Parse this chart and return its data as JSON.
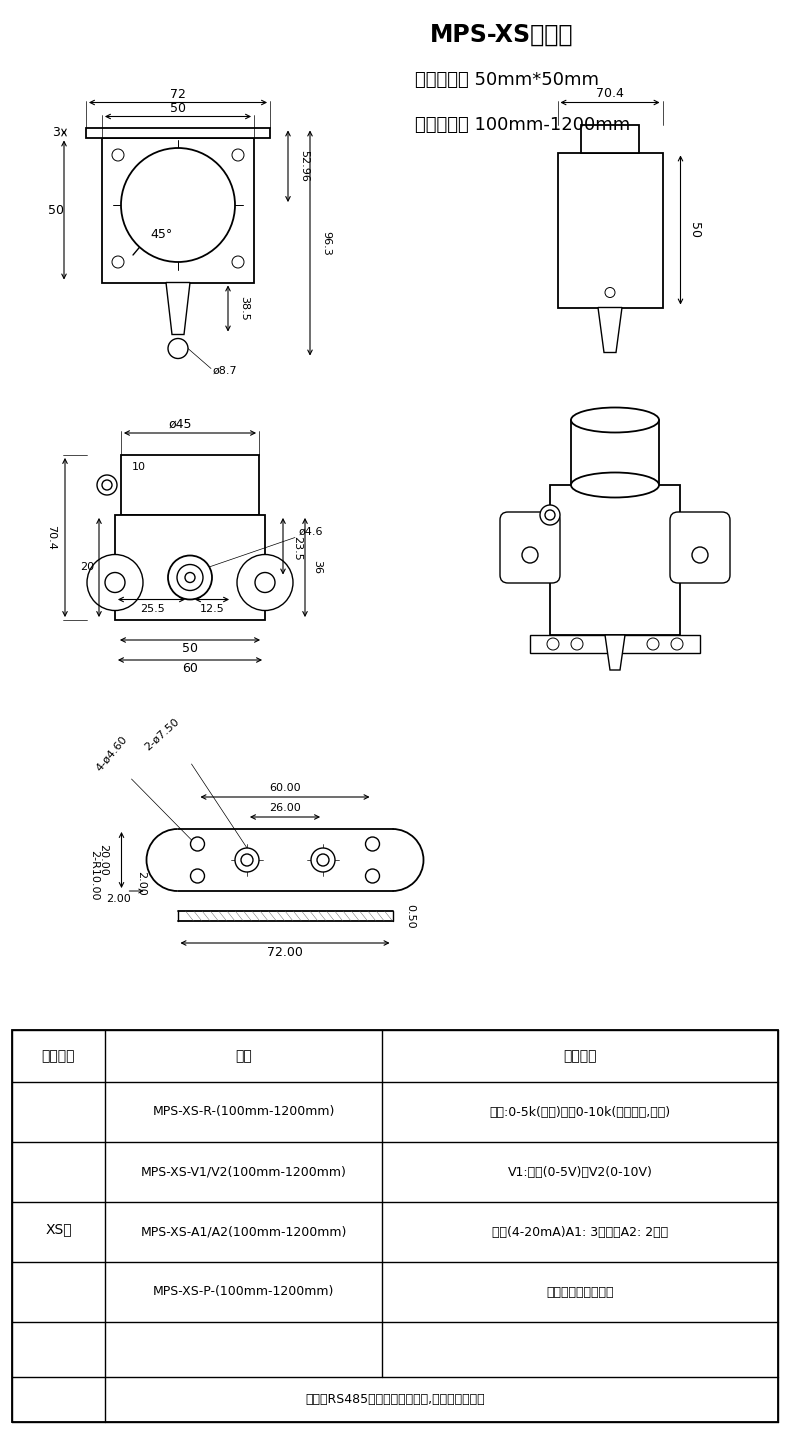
{
  "title": "MPS-XS拉绳尺",
  "subtitle1": "主体尺寸： 50mm*50mm",
  "subtitle2": "量程范围： 100mm-1200mm",
  "bg_color": "#ffffff",
  "line_color": "#000000",
  "table_header": [
    "产品系列",
    "型号",
    "输出方式"
  ],
  "table_col1_label": "XS型",
  "table_rows": [
    [
      "MPS-XS-R-(100mm-1200mm)",
      "电阻:0-5k(默认)或者0-10k(精度高些,选配)"
    ],
    [
      "MPS-XS-V1/V2(100mm-1200mm)",
      "V1:电压(0-5V)或V2(0-10V)"
    ],
    [
      "MPS-XS-A1/A2(100mm-1200mm)",
      "电流(4-20mA)A1: 3线制或A2: 2线制"
    ],
    [
      "MPS-XS-P-(100mm-1200mm)",
      "常规编码器脉冲输出"
    ]
  ],
  "table_footer": "如需要RS485数字信号输出方式,可以另加变送器",
  "dim_72": "72",
  "dim_50": "50",
  "dim_3": "3",
  "dim_52_96": "52.96",
  "dim_96_3": "96.3",
  "dim_38_5": "38.5",
  "dim_8_7": "ø8.7",
  "dim_45": "ø45",
  "dim_70_4": "70.4",
  "dim_4_6": "ø4.6",
  "dim_70_4b": "70.4",
  "dim_20": "20",
  "dim_25_5": "25.5",
  "dim_12_5": "12.5",
  "dim_23_5": "23.5",
  "dim_36": "36",
  "dim_50b": "50",
  "dim_60": "60",
  "dim_10": "10",
  "plate_4phi": "4-ø4.60",
  "plate_2phi": "2-ø7.50",
  "plate_r": "2-R10.00",
  "plate_2": "2.00",
  "plate_20": "20.00",
  "plate_26": "26.00",
  "plate_60": "60.00",
  "plate_72": "72.00",
  "plate_05": "0.50"
}
